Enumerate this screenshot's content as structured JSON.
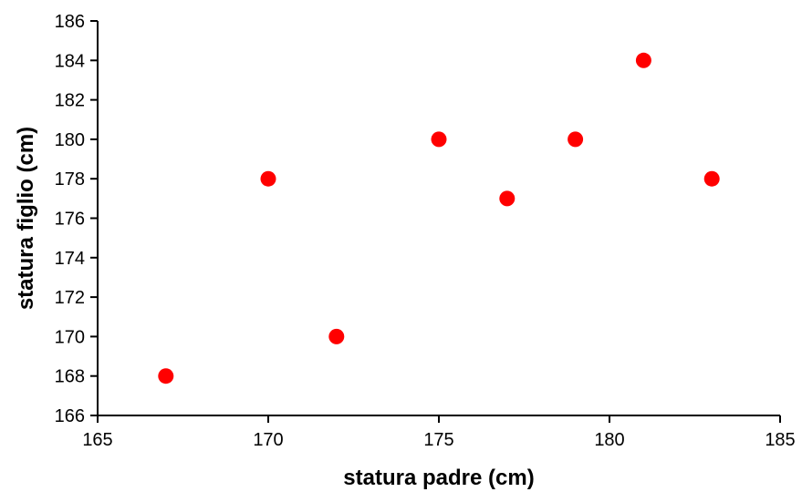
{
  "chart_data": {
    "type": "scatter",
    "title": "",
    "xlabel": "statura padre (cm)",
    "ylabel": "statura figlio (cm)",
    "xlim": [
      165,
      185
    ],
    "ylim": [
      166,
      186
    ],
    "x_ticks": [
      165,
      170,
      175,
      180,
      185
    ],
    "y_ticks": [
      166,
      168,
      170,
      172,
      174,
      176,
      178,
      180,
      182,
      184,
      186
    ],
    "grid": false,
    "legend": "none",
    "marker_color": "#ff0000",
    "series": [
      {
        "points": [
          {
            "x": 167,
            "y": 168
          },
          {
            "x": 170,
            "y": 178
          },
          {
            "x": 172,
            "y": 170
          },
          {
            "x": 175,
            "y": 180
          },
          {
            "x": 177,
            "y": 177
          },
          {
            "x": 179,
            "y": 180
          },
          {
            "x": 181,
            "y": 184
          },
          {
            "x": 183,
            "y": 178
          }
        ]
      }
    ]
  }
}
